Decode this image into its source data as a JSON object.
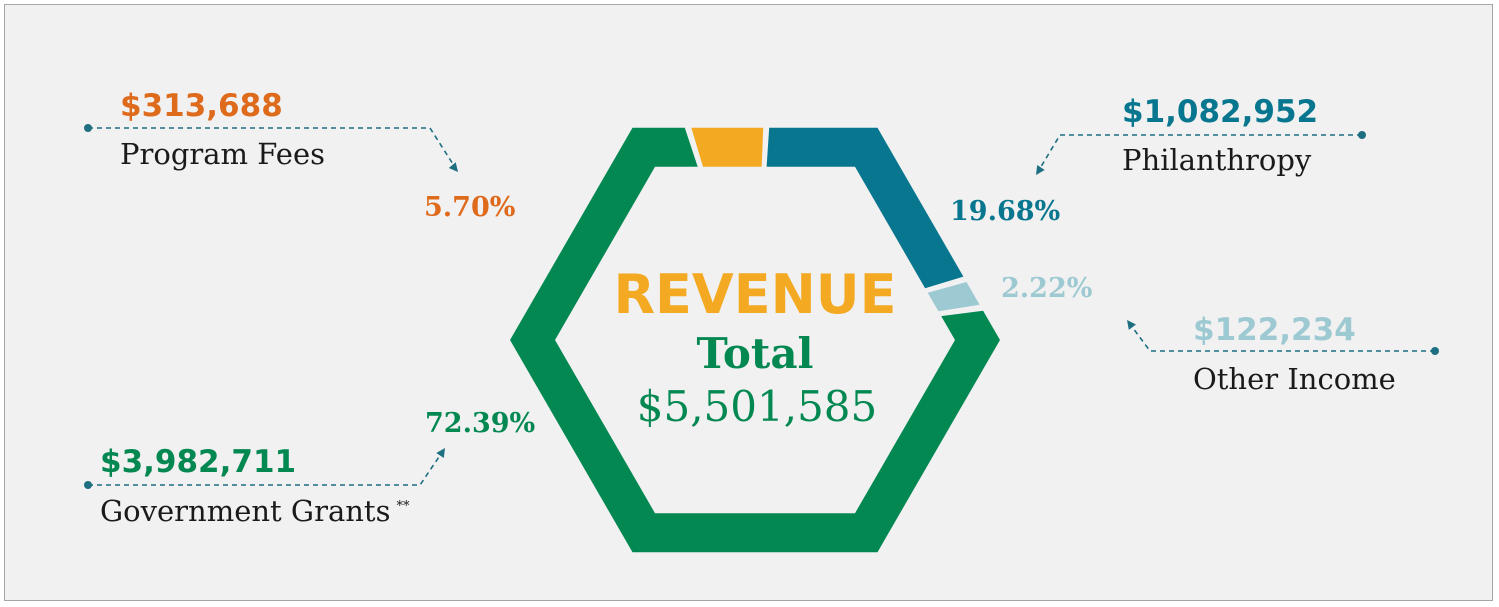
{
  "chart_data": {
    "type": "pie",
    "center": {
      "title": "REVENUE",
      "subtitle": "Total",
      "total": "$5,501,585"
    },
    "slices": [
      {
        "name": "Program Fees",
        "amount": "$313,688",
        "percent_label": "5.70%",
        "value": 5.7,
        "color": "#f4a923",
        "label_color": "#de6a1c"
      },
      {
        "name": "Philanthropy",
        "amount": "$1,082,952",
        "percent_label": "19.68%",
        "value": 19.68,
        "color": "#08768f",
        "label_color": "#08768f"
      },
      {
        "name": "Other Income",
        "amount": "$122,234",
        "percent_label": "2.22%",
        "value": 2.22,
        "color": "#9dc9d2",
        "label_color": "#9dc9d2"
      },
      {
        "name": "Government Grants",
        "amount": "$3,982,711",
        "percent_label": "72.39%",
        "value": 72.39,
        "color": "#048852",
        "label_color": "#048852",
        "note": "**"
      }
    ],
    "colors": {
      "title": "#f4a923",
      "total": "#048852",
      "leader": "#1e6f82"
    }
  }
}
